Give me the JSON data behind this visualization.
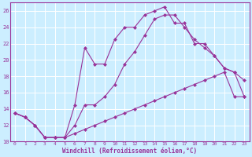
{
  "xlabel": "Windchill (Refroidissement éolien,°C)",
  "bg_color": "#cceeff",
  "line_color": "#993399",
  "x_min": 0,
  "x_max": 23,
  "y_min": 10,
  "y_max": 27,
  "yticks": [
    10,
    12,
    14,
    16,
    18,
    20,
    22,
    24,
    26
  ],
  "xticks": [
    0,
    1,
    2,
    3,
    4,
    5,
    6,
    7,
    8,
    9,
    10,
    11,
    12,
    13,
    14,
    15,
    16,
    17,
    18,
    19,
    20,
    21,
    22,
    23
  ],
  "series1_x": [
    0,
    1,
    2,
    3,
    4,
    5,
    6,
    7,
    8,
    9,
    10,
    11,
    12,
    13,
    14,
    15,
    16,
    17,
    18,
    19,
    20,
    21,
    22,
    23
  ],
  "series1_y": [
    13.5,
    13.0,
    12.0,
    10.5,
    10.5,
    10.5,
    14.5,
    21.5,
    19.5,
    19.5,
    22.5,
    24.0,
    24.0,
    25.5,
    26.0,
    26.5,
    24.5,
    24.5,
    22.0,
    22.0,
    20.5,
    19.0,
    18.5,
    17.5
  ],
  "series2_x": [
    0,
    1,
    2,
    3,
    4,
    5,
    6,
    7,
    8,
    9,
    10,
    11,
    12,
    13,
    14,
    15,
    16,
    17,
    18,
    19,
    20,
    21,
    22,
    23
  ],
  "series2_y": [
    13.5,
    13.0,
    12.0,
    10.5,
    10.5,
    10.5,
    12.0,
    14.5,
    14.5,
    15.5,
    17.0,
    19.5,
    21.0,
    23.0,
    25.0,
    25.5,
    25.5,
    24.0,
    22.5,
    21.5,
    20.5,
    19.0,
    18.5,
    15.5
  ],
  "series3_x": [
    0,
    1,
    2,
    3,
    4,
    5,
    6,
    7,
    8,
    9,
    10,
    11,
    12,
    13,
    14,
    15,
    16,
    17,
    18,
    19,
    20,
    21,
    22,
    23
  ],
  "series3_y": [
    13.5,
    13.0,
    12.0,
    10.5,
    10.5,
    10.5,
    11.0,
    11.5,
    12.0,
    12.5,
    13.0,
    13.5,
    14.0,
    14.5,
    15.0,
    15.5,
    16.0,
    16.5,
    17.0,
    17.5,
    18.0,
    18.5,
    15.5,
    15.5
  ]
}
